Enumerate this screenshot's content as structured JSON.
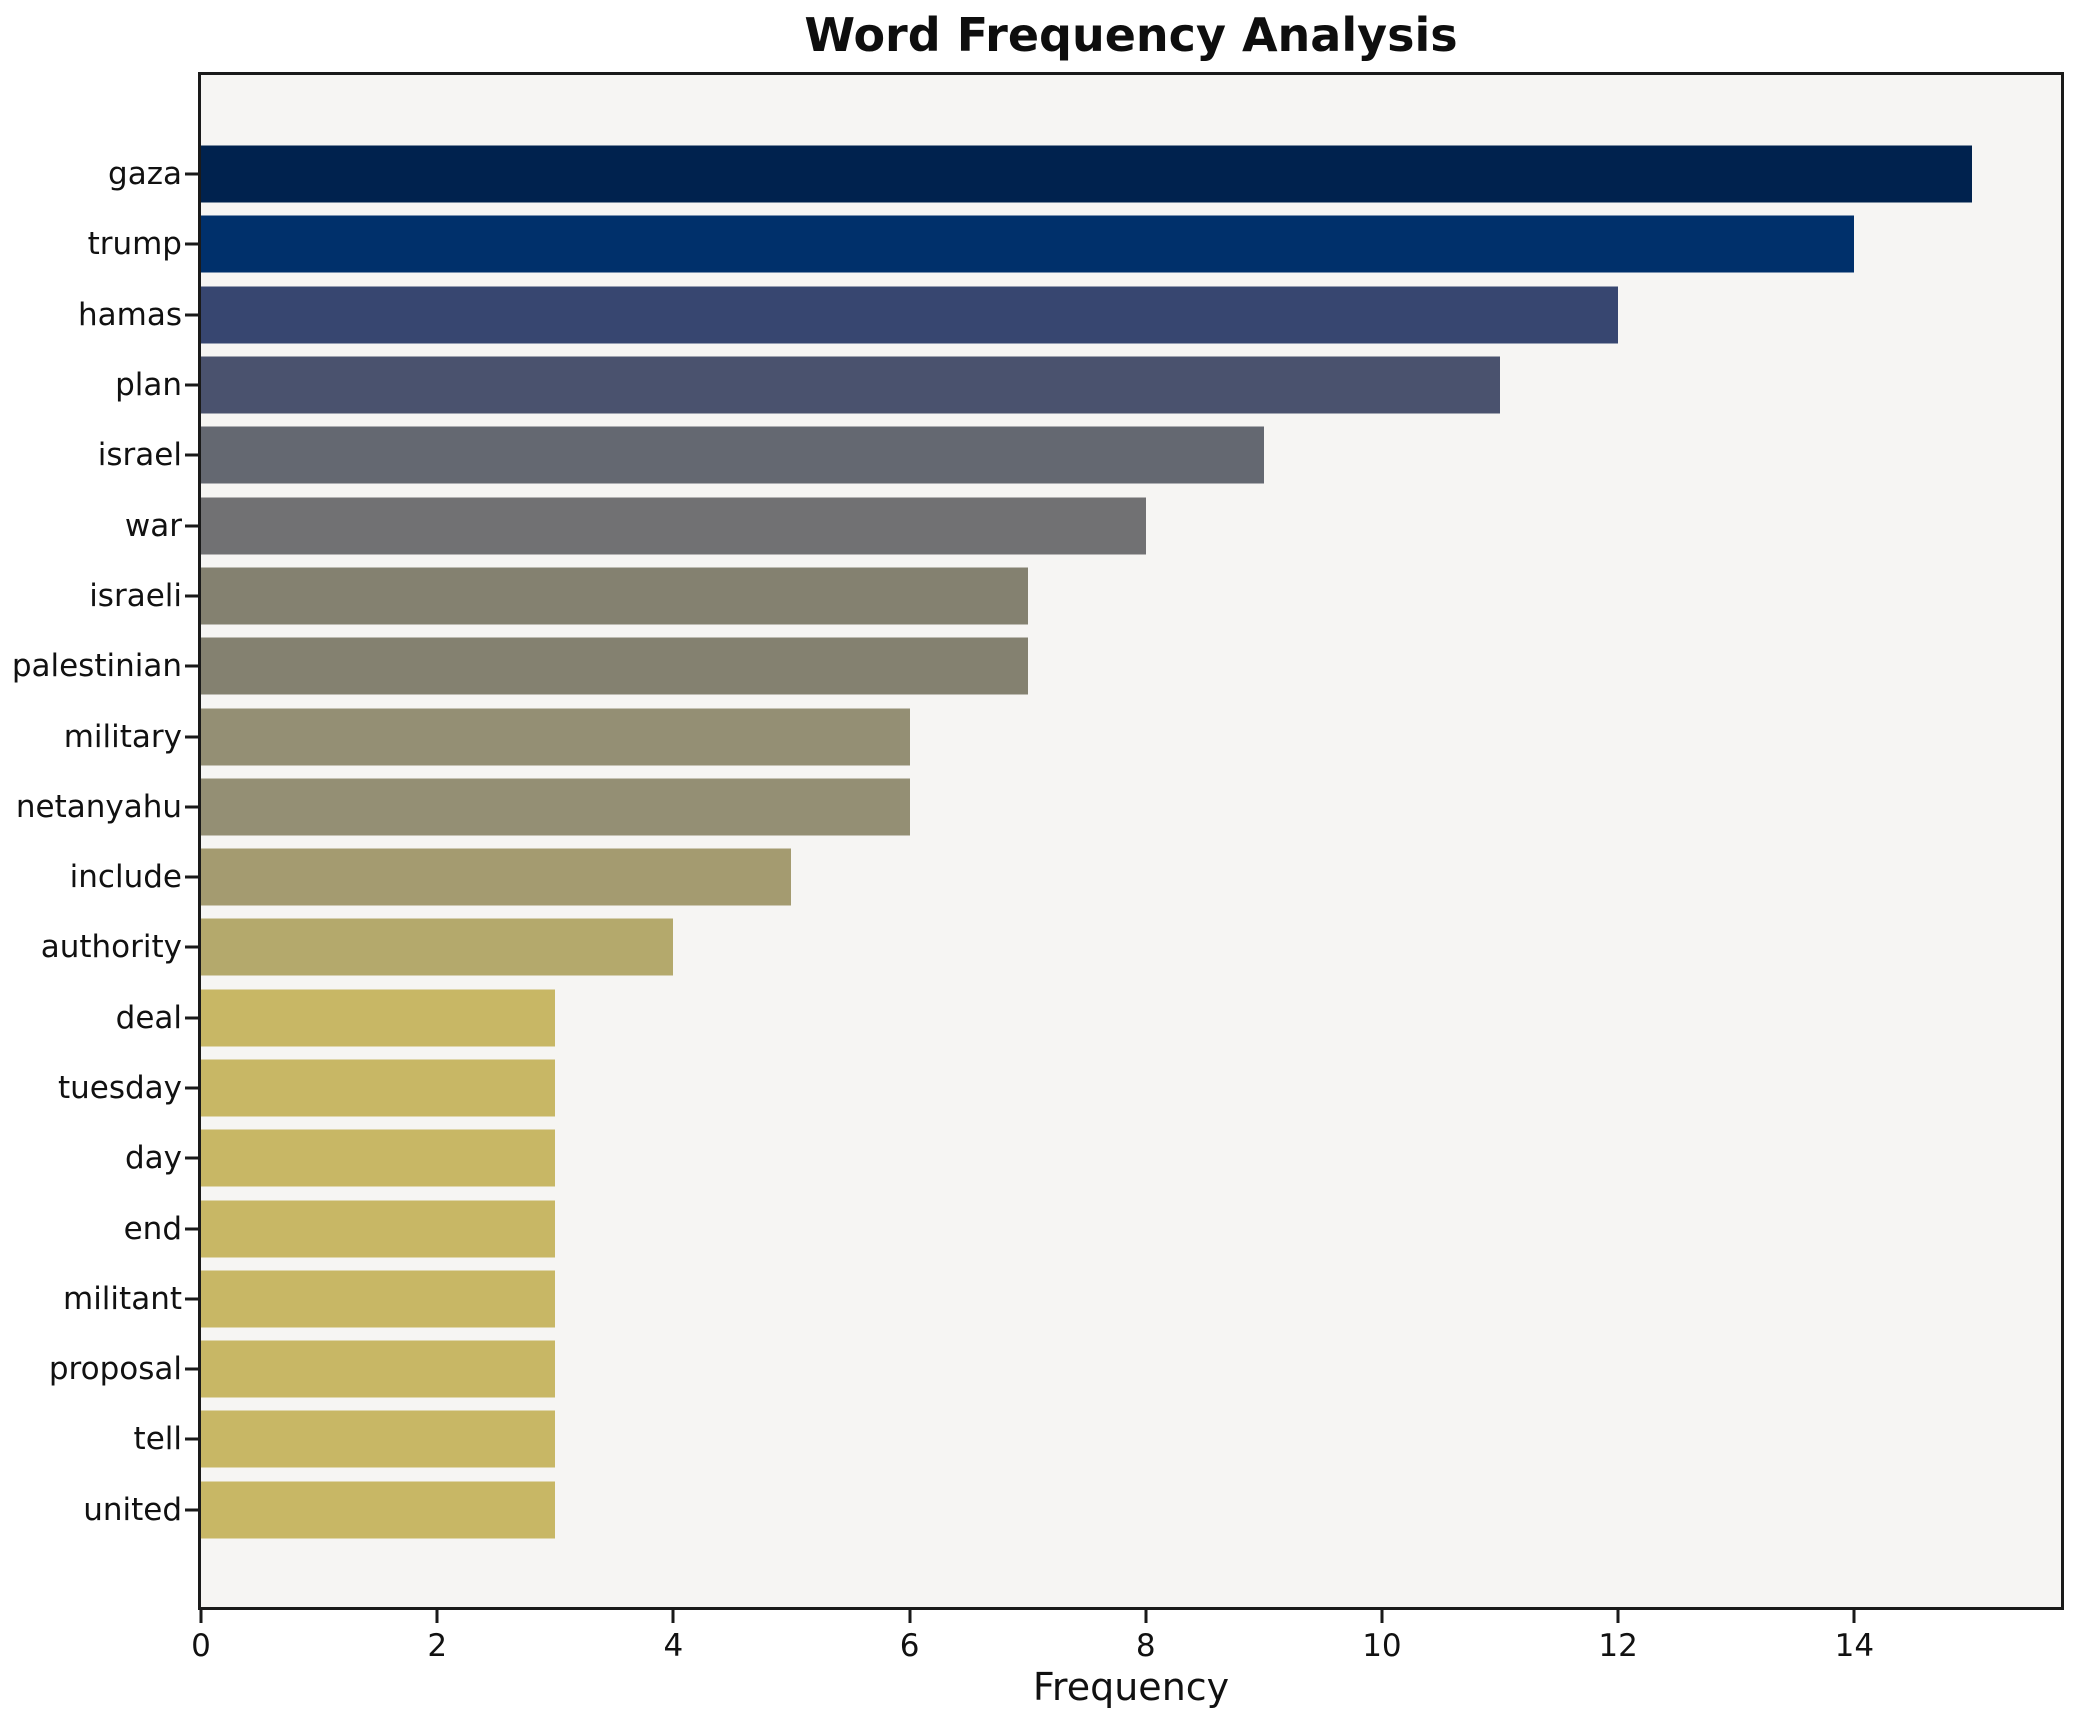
{
  "title": "Word Frequency Analysis",
  "chart_data": {
    "type": "bar",
    "orientation": "horizontal",
    "title": "Word Frequency Analysis",
    "xlabel": "Frequency",
    "ylabel": "",
    "categories": [
      "gaza",
      "trump",
      "hamas",
      "plan",
      "israel",
      "war",
      "israeli",
      "palestinian",
      "military",
      "netanyahu",
      "include",
      "authority",
      "deal",
      "tuesday",
      "day",
      "end",
      "militant",
      "proposal",
      "tell",
      "united"
    ],
    "values": [
      15,
      14,
      12,
      11,
      9,
      8,
      7,
      7,
      6,
      6,
      5,
      4,
      3,
      3,
      3,
      3,
      3,
      3,
      3,
      3
    ],
    "bar_colors": [
      "#00224e",
      "#00306b",
      "#374670",
      "#4a526e",
      "#646871",
      "#717173",
      "#848170",
      "#848170",
      "#948f74",
      "#948f74",
      "#a49b70",
      "#b4a96c",
      "#c8b765",
      "#c8b765",
      "#c8b765",
      "#c8b765",
      "#c8b765",
      "#c8b765",
      "#c8b765",
      "#c8b765"
    ],
    "xlim": [
      0,
      15.75
    ],
    "xticks": [
      0,
      2,
      4,
      6,
      8,
      10,
      12,
      14
    ],
    "grid": false,
    "legend_position": "none",
    "colormap": "cividis",
    "plot_background": "#f6f5f3",
    "figure_background": "#ffffff",
    "spine_color": "#1a1a1a",
    "bar_height_fraction": 0.8
  }
}
